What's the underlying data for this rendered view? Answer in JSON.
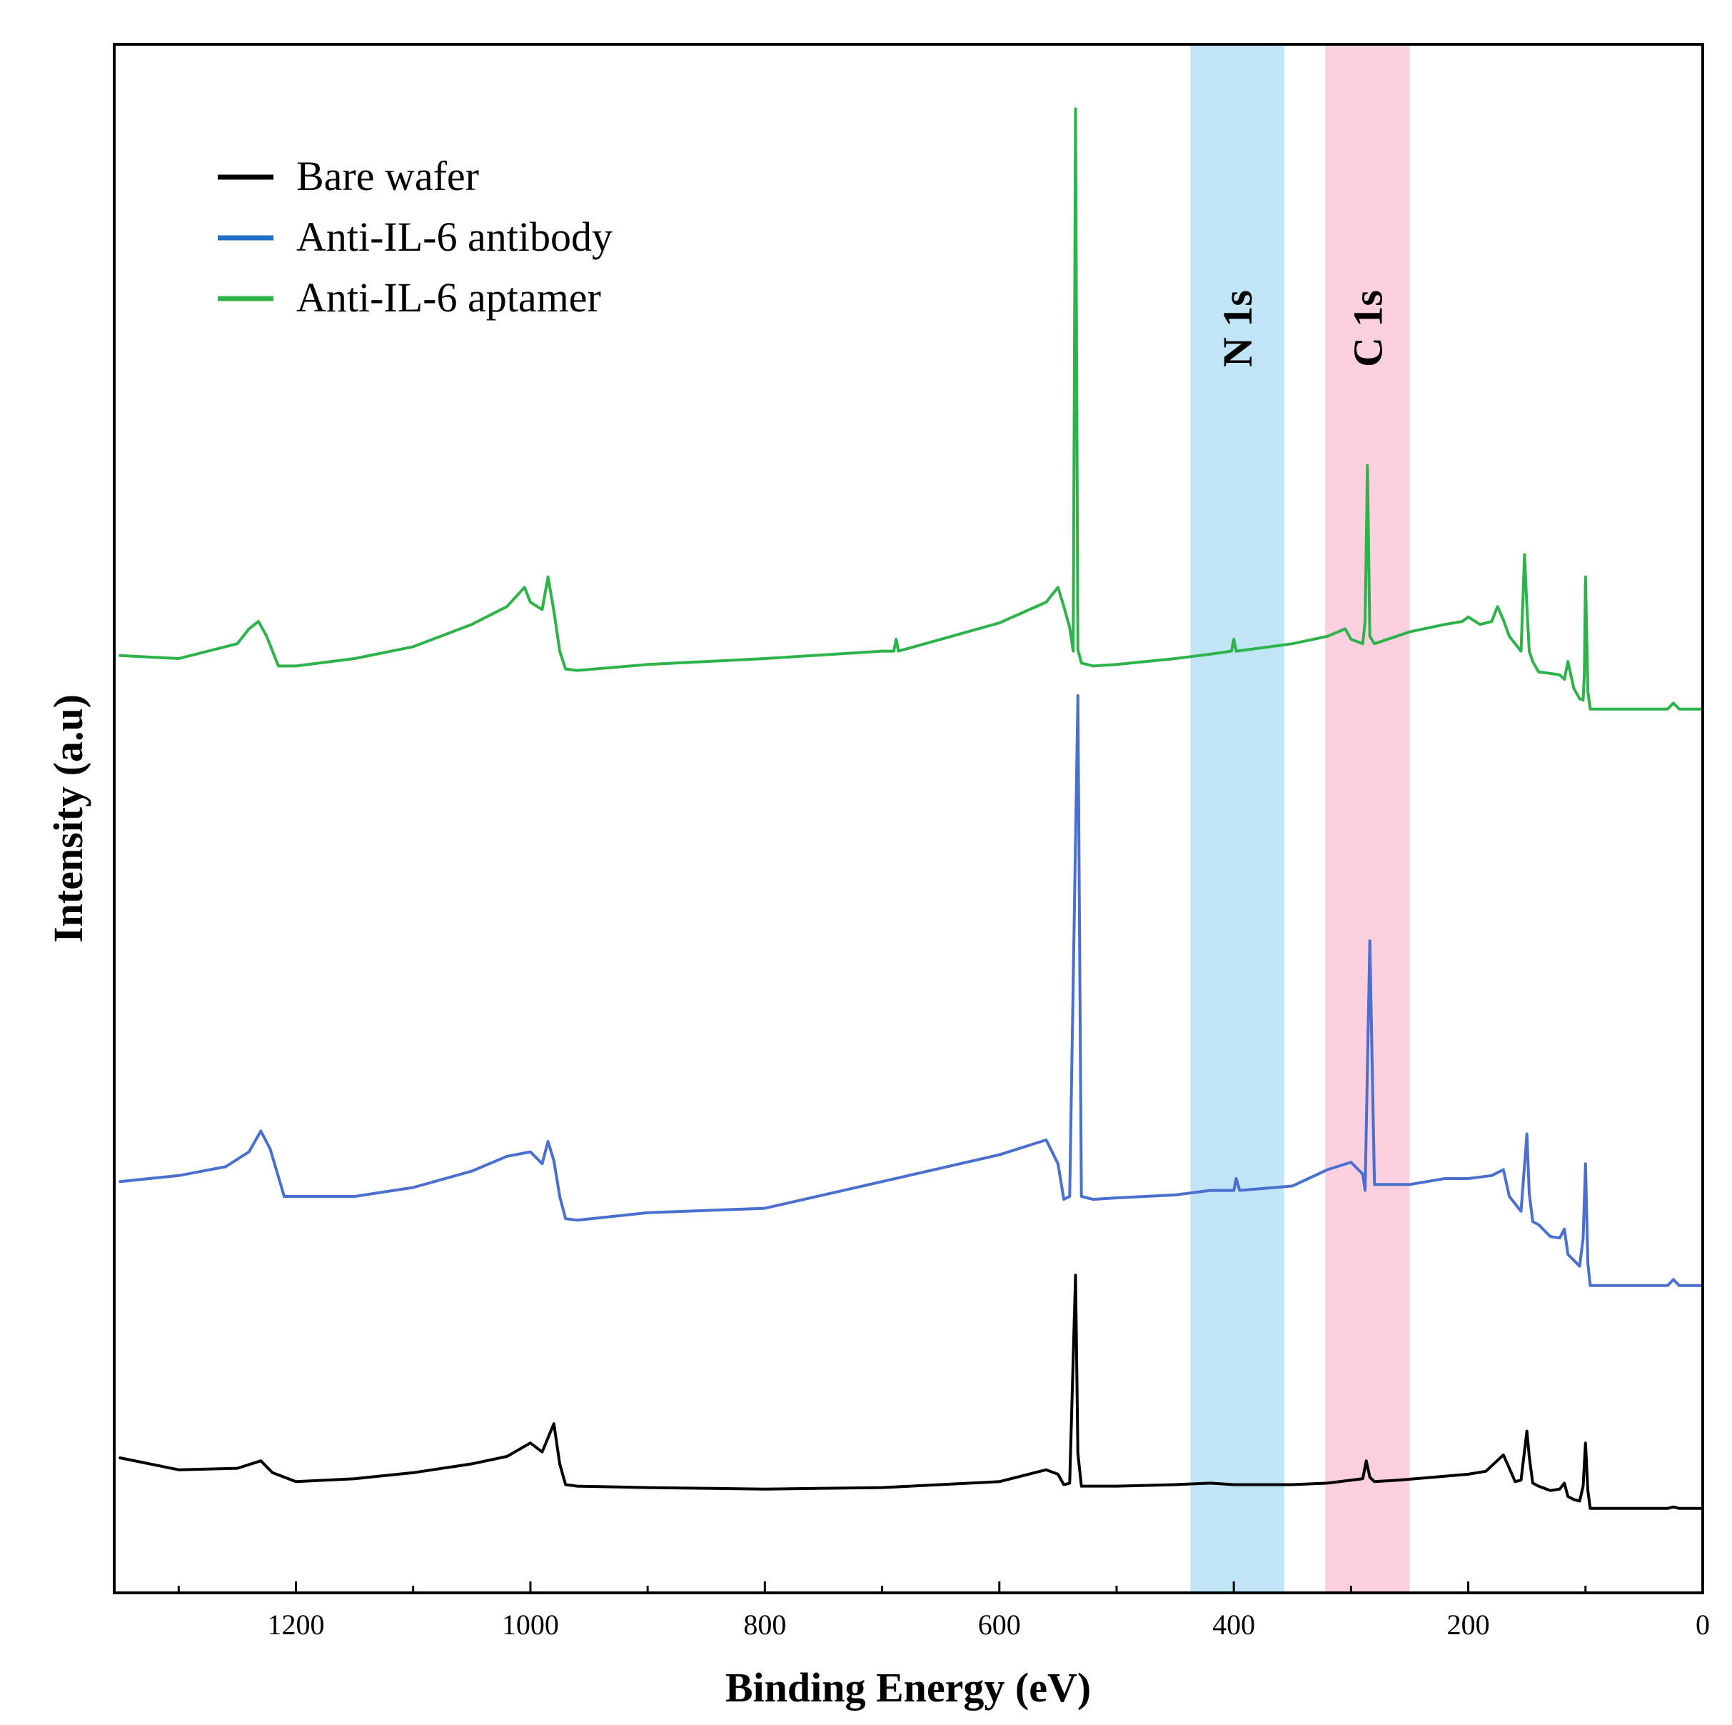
{
  "chart_data": {
    "type": "line",
    "title": "",
    "xlabel": "Binding Energy (eV)",
    "ylabel": "Intensity (a.u)",
    "xlim": [
      1355,
      0
    ],
    "x_reversed": true,
    "xticks": [
      1200,
      1000,
      800,
      600,
      400,
      200,
      0
    ],
    "ylim": [
      0,
      100
    ],
    "yticks": false,
    "grid": false,
    "legend_position": "top-left",
    "bands": [
      {
        "label": "N 1s",
        "from": 437,
        "to": 357,
        "color": "#bfe5f6"
      },
      {
        "label": "C 1s",
        "from": 322,
        "to": 250,
        "color": "#fdd0df"
      }
    ],
    "series": [
      {
        "name": "Bare wafer",
        "color": "#000000",
        "legend_color": "#000000",
        "x": [
          1350,
          1300,
          1250,
          1230,
          1220,
          1200,
          1150,
          1100,
          1050,
          1020,
          1000,
          990,
          980,
          975,
          970,
          960,
          900,
          800,
          700,
          600,
          560,
          550,
          545,
          540,
          535,
          533,
          530,
          520,
          500,
          450,
          420,
          400,
          350,
          320,
          290,
          287,
          284,
          280,
          260,
          230,
          200,
          185,
          170,
          165,
          160,
          155,
          150,
          148,
          145,
          140,
          130,
          122,
          118,
          115,
          110,
          105,
          102,
          100,
          98,
          96,
          90,
          50,
          30,
          25,
          20,
          10,
          2
        ],
        "y": [
          6.2,
          5.4,
          5.5,
          6.0,
          5.2,
          4.6,
          4.8,
          5.2,
          5.8,
          6.3,
          7.2,
          6.6,
          8.5,
          5.8,
          4.4,
          4.3,
          4.2,
          4.1,
          4.2,
          4.6,
          5.4,
          5.1,
          4.4,
          4.5,
          18.5,
          6.5,
          4.3,
          4.3,
          4.3,
          4.4,
          4.5,
          4.4,
          4.4,
          4.5,
          4.8,
          6.0,
          4.9,
          4.6,
          4.7,
          4.9,
          5.1,
          5.3,
          6.4,
          5.5,
          4.6,
          4.7,
          8.0,
          6.3,
          4.5,
          4.3,
          4.0,
          4.1,
          4.5,
          3.6,
          3.4,
          3.3,
          4.3,
          7.2,
          4.0,
          2.8,
          2.8,
          2.8,
          2.8,
          2.9,
          2.8,
          2.8,
          2.8
        ]
      },
      {
        "name": "Anti-IL-6 antibody",
        "color": "#4a6fcf",
        "legend_color": "#1f6fc7",
        "x": [
          1350,
          1300,
          1260,
          1240,
          1230,
          1222,
          1210,
          1150,
          1100,
          1050,
          1020,
          1000,
          990,
          985,
          980,
          975,
          970,
          960,
          900,
          800,
          700,
          600,
          560,
          550,
          545,
          540,
          533,
          530,
          520,
          500,
          450,
          420,
          400,
          398,
          395,
          350,
          320,
          300,
          290,
          288,
          284,
          280,
          250,
          220,
          200,
          180,
          170,
          165,
          160,
          155,
          150,
          148,
          145,
          140,
          130,
          122,
          118,
          115,
          110,
          105,
          102,
          100,
          98,
          96,
          90,
          50,
          30,
          25,
          20,
          10,
          2
        ],
        "y": [
          24.8,
          25.2,
          25.8,
          26.8,
          28.2,
          27.0,
          23.8,
          23.8,
          24.4,
          25.5,
          26.5,
          26.8,
          26.0,
          27.5,
          26.2,
          23.8,
          22.3,
          22.2,
          22.7,
          23.0,
          24.8,
          26.6,
          27.6,
          26.0,
          23.6,
          23.8,
          57.5,
          23.8,
          23.6,
          23.7,
          23.9,
          24.2,
          24.2,
          25.0,
          24.2,
          24.5,
          25.6,
          26.1,
          25.3,
          24.2,
          41.0,
          24.6,
          24.6,
          25.0,
          25.0,
          25.2,
          25.6,
          23.8,
          23.3,
          22.8,
          28.0,
          24.0,
          22.1,
          21.9,
          21.1,
          21.0,
          21.6,
          19.9,
          19.5,
          19.1,
          21.0,
          26.0,
          19.3,
          17.8,
          17.8,
          17.8,
          17.8,
          18.2,
          17.8,
          17.8,
          17.8
        ]
      },
      {
        "name": "Anti-IL-6 aptamer",
        "color": "#2db34a",
        "legend_color": "#2db34a",
        "x": [
          1350,
          1300,
          1250,
          1240,
          1232,
          1225,
          1215,
          1200,
          1150,
          1100,
          1050,
          1020,
          1005,
          1000,
          990,
          985,
          980,
          975,
          970,
          960,
          900,
          800,
          700,
          690,
          688,
          686,
          600,
          560,
          550,
          545,
          540,
          537,
          535,
          533,
          530,
          520,
          500,
          450,
          420,
          402,
          400,
          398,
          350,
          320,
          305,
          300,
          290,
          288,
          286,
          284,
          280,
          250,
          220,
          205,
          200,
          190,
          180,
          175,
          170,
          165,
          160,
          155,
          152,
          150,
          148,
          145,
          140,
          130,
          122,
          118,
          115,
          110,
          105,
          102,
          101,
          100,
          98,
          96,
          90,
          50,
          30,
          25,
          20,
          10,
          2
        ],
        "y": [
          60.2,
          60.0,
          61.0,
          62.0,
          62.5,
          61.5,
          59.5,
          59.5,
          60.0,
          60.8,
          62.3,
          63.5,
          64.8,
          63.8,
          63.3,
          65.5,
          63.2,
          60.5,
          59.3,
          59.2,
          59.6,
          60.0,
          60.5,
          60.5,
          61.3,
          60.5,
          62.4,
          63.8,
          64.8,
          63.5,
          62.1,
          60.5,
          97.0,
          60.6,
          59.7,
          59.5,
          59.6,
          60.0,
          60.3,
          60.5,
          61.3,
          60.5,
          61.0,
          61.5,
          62.0,
          61.3,
          61.0,
          62.5,
          73.0,
          61.5,
          61.0,
          61.8,
          62.3,
          62.5,
          62.8,
          62.3,
          62.5,
          63.5,
          62.6,
          61.5,
          61.0,
          60.5,
          67.0,
          63.5,
          60.5,
          59.8,
          59.1,
          59.0,
          58.9,
          58.6,
          59.8,
          58.0,
          57.3,
          57.2,
          59.0,
          65.5,
          57.8,
          56.6,
          56.6,
          56.6,
          56.6,
          57.0,
          56.6,
          56.6,
          56.6
        ]
      }
    ]
  }
}
